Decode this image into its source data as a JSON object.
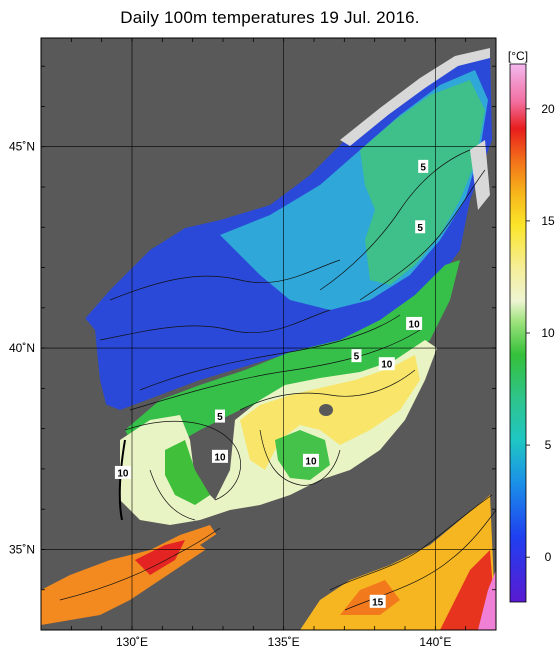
{
  "title": "Daily 100m temperatures 19 Jul. 2016.",
  "map": {
    "lon_range": [
      127,
      142
    ],
    "lat_range": [
      33,
      47.7
    ],
    "lon_ticks": [
      {
        "value": 130,
        "label": "130˚E"
      },
      {
        "value": 135,
        "label": "135˚E"
      },
      {
        "value": 140,
        "label": "140˚E"
      }
    ],
    "lat_ticks": [
      {
        "value": 35,
        "label": "35˚N"
      },
      {
        "value": 40,
        "label": "40˚N"
      },
      {
        "value": 45,
        "label": "45˚N"
      }
    ],
    "land_color": "#595959",
    "nodata_color": "#d8d8d8"
  },
  "colorbar": {
    "unit": "[°C]",
    "min": -2,
    "max": 22,
    "ticks": [
      {
        "value": 0,
        "label": "0"
      },
      {
        "value": 5,
        "label": "5"
      },
      {
        "value": 10,
        "label": "10"
      },
      {
        "value": 15,
        "label": "15"
      },
      {
        "value": 20,
        "label": "20"
      }
    ]
  },
  "contour_labels": [
    {
      "text": "5",
      "lon": 139.6,
      "lat": 44.5
    },
    {
      "text": "5",
      "lon": 139.5,
      "lat": 43.0
    },
    {
      "text": "10",
      "lon": 139.3,
      "lat": 40.6
    },
    {
      "text": "5",
      "lon": 137.4,
      "lat": 39.8
    },
    {
      "text": "10",
      "lon": 138.4,
      "lat": 39.6
    },
    {
      "text": "5",
      "lon": 132.9,
      "lat": 38.3
    },
    {
      "text": "10",
      "lon": 132.9,
      "lat": 37.3
    },
    {
      "text": "10",
      "lon": 135.9,
      "lat": 37.2
    },
    {
      "text": "10",
      "lon": 129.7,
      "lat": 36.9
    },
    {
      "text": "15",
      "lon": 138.1,
      "lat": 33.7
    }
  ]
}
